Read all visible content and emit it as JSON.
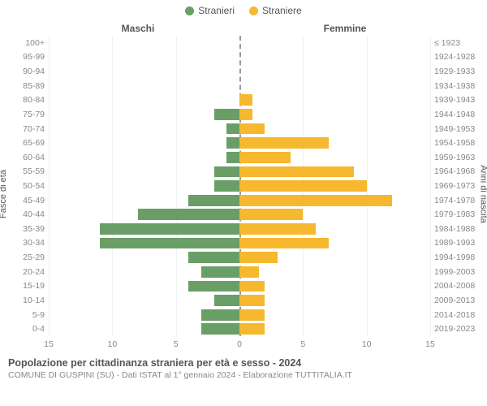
{
  "legend": {
    "male": {
      "label": "Stranieri",
      "color": "#6a9e67"
    },
    "female": {
      "label": "Straniere",
      "color": "#f5b82e"
    }
  },
  "headers": {
    "left": "Maschi",
    "right": "Femmine"
  },
  "axis_labels": {
    "left": "Fasce di età",
    "right": "Anni di nascita"
  },
  "chart": {
    "type": "population_pyramid",
    "xmax": 15,
    "xticks": [
      15,
      10,
      5,
      0,
      5,
      10,
      15
    ],
    "background_color": "#ffffff",
    "grid_color": "#eef2f5",
    "bar_male_color": "#6a9e67",
    "bar_female_color": "#f5b82e",
    "centerline_color": "#999999",
    "rows": [
      {
        "age": "100+",
        "birth": "≤ 1923",
        "m": 0,
        "f": 0
      },
      {
        "age": "95-99",
        "birth": "1924-1928",
        "m": 0,
        "f": 0
      },
      {
        "age": "90-94",
        "birth": "1929-1933",
        "m": 0,
        "f": 0
      },
      {
        "age": "85-89",
        "birth": "1934-1938",
        "m": 0,
        "f": 0
      },
      {
        "age": "80-84",
        "birth": "1939-1943",
        "m": 0,
        "f": 1
      },
      {
        "age": "75-79",
        "birth": "1944-1948",
        "m": 2,
        "f": 1
      },
      {
        "age": "70-74",
        "birth": "1949-1953",
        "m": 1,
        "f": 2
      },
      {
        "age": "65-69",
        "birth": "1954-1958",
        "m": 1,
        "f": 7
      },
      {
        "age": "60-64",
        "birth": "1959-1963",
        "m": 1,
        "f": 4
      },
      {
        "age": "55-59",
        "birth": "1964-1968",
        "m": 2,
        "f": 9
      },
      {
        "age": "50-54",
        "birth": "1969-1973",
        "m": 2,
        "f": 10
      },
      {
        "age": "45-49",
        "birth": "1974-1978",
        "m": 4,
        "f": 12
      },
      {
        "age": "40-44",
        "birth": "1979-1983",
        "m": 8,
        "f": 5
      },
      {
        "age": "35-39",
        "birth": "1984-1988",
        "m": 11,
        "f": 6
      },
      {
        "age": "30-34",
        "birth": "1989-1993",
        "m": 11,
        "f": 7
      },
      {
        "age": "25-29",
        "birth": "1994-1998",
        "m": 4,
        "f": 3
      },
      {
        "age": "20-24",
        "birth": "1999-2003",
        "m": 3,
        "f": 1.5
      },
      {
        "age": "15-19",
        "birth": "2004-2008",
        "m": 4,
        "f": 2
      },
      {
        "age": "10-14",
        "birth": "2009-2013",
        "m": 2,
        "f": 2
      },
      {
        "age": "5-9",
        "birth": "2014-2018",
        "m": 3,
        "f": 2
      },
      {
        "age": "0-4",
        "birth": "2019-2023",
        "m": 3,
        "f": 2
      }
    ]
  },
  "footer": {
    "title": "Popolazione per cittadinanza straniera per età e sesso - 2024",
    "subtitle": "COMUNE DI GUSPINI (SU) - Dati ISTAT al 1° gennaio 2024 - Elaborazione TUTTITALIA.IT"
  }
}
